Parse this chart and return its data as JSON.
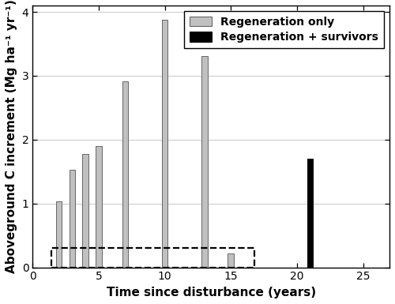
{
  "gray_bars_x": [
    2,
    3,
    4,
    5,
    7,
    10,
    13,
    15
  ],
  "gray_bars_height": [
    1.03,
    1.53,
    1.77,
    1.9,
    2.91,
    3.88,
    3.31,
    0.22
  ],
  "black_bars_x": [
    21
  ],
  "black_bars_height": [
    1.7
  ],
  "bar_width": 0.45,
  "gray_color": "#c0c0c0",
  "black_color": "#000000",
  "xlim": [
    0,
    27
  ],
  "ylim": [
    0,
    4.1
  ],
  "xticks": [
    0,
    5,
    10,
    15,
    20,
    25
  ],
  "yticks": [
    0,
    1,
    2,
    3,
    4
  ],
  "xlabel": "Time since disturbance (years)",
  "ylabel": "Aboveground C increment (Mg ha⁻¹ yr⁻¹)",
  "legend_label_gray": "Regeneration only",
  "legend_label_black": "Regeneration + survivors",
  "dashed_rect_x0": 1.4,
  "dashed_rect_x1": 16.8,
  "dashed_rect_y0": 0.0,
  "dashed_rect_y1": 0.3,
  "label_fontsize": 11,
  "tick_fontsize": 10,
  "legend_fontsize": 10,
  "bar_edgecolor": "#666666",
  "background_color": "#ffffff",
  "grid_color": "#c8c8c8"
}
